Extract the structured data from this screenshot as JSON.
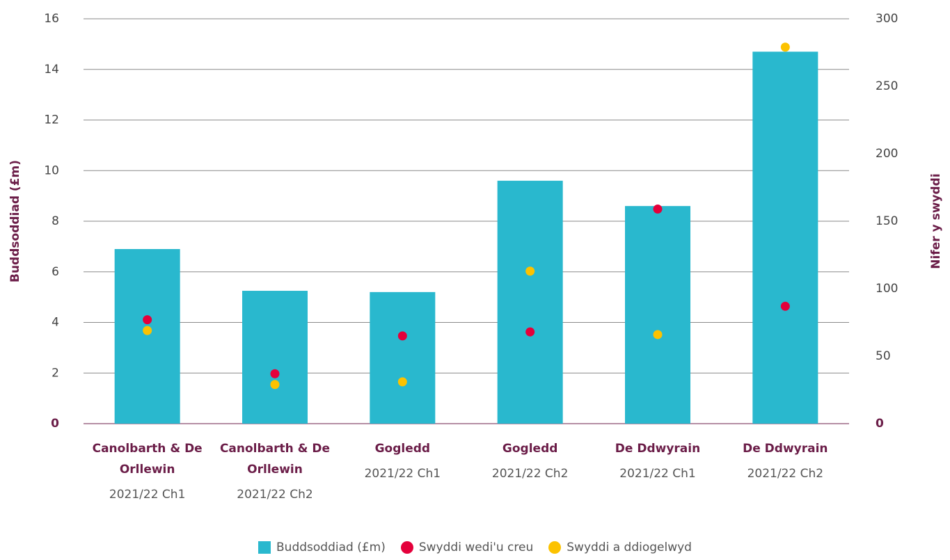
{
  "chart_data": {
    "type": "bar",
    "categories": [
      [
        "Canolbarth & De Orllewin",
        "2021/22 Ch1"
      ],
      [
        "Canolbarth & De Orllewin",
        "2021/22 Ch2"
      ],
      [
        "Gogledd",
        "2021/22 Ch1"
      ],
      [
        "Gogledd",
        "2021/22 Ch2"
      ],
      [
        "De Ddwyrain",
        "2021/22 Ch1"
      ],
      [
        "De Ddwyrain",
        "2021/22 Ch2"
      ]
    ],
    "series": [
      {
        "name": "Buddsoddiad (£m)",
        "type": "bar",
        "color": "#29b8ce",
        "values": [
          6.9,
          5.25,
          5.2,
          9.6,
          8.6,
          14.7
        ]
      },
      {
        "name": "Swyddi wedi'u creu",
        "type": "scatter",
        "axis": "y2",
        "color": "#e4003b",
        "values": [
          77,
          37,
          65,
          68,
          159,
          87
        ]
      },
      {
        "name": "Swyddi a ddiogelwyd",
        "type": "scatter",
        "axis": "y2",
        "color": "#fcc200",
        "values": [
          69,
          29,
          31,
          113,
          66,
          279
        ]
      }
    ],
    "ylabel": "Buddsoddiad (£m)",
    "y2label": "Nifer y swyddi",
    "ylim": [
      0,
      16
    ],
    "yticks": [
      0,
      2,
      4,
      6,
      8,
      10,
      12,
      14,
      16
    ],
    "y2lim": [
      0,
      300
    ],
    "y2ticks": [
      0,
      50,
      100,
      150,
      200,
      250,
      300
    ],
    "grid": true,
    "legend": "bottom"
  }
}
